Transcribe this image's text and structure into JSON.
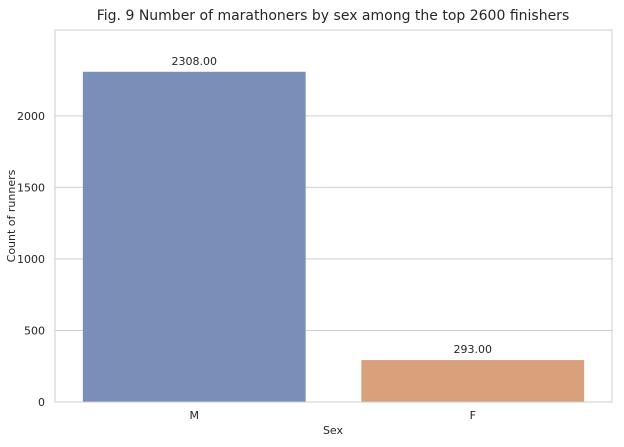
{
  "chart_data": {
    "type": "bar",
    "title": "Fig. 9 Number of marathoners by sex among the top 2600 finishers",
    "xlabel": "Sex",
    "ylabel": "Count of runners",
    "categories": [
      "M",
      "F"
    ],
    "values": [
      2308,
      293
    ],
    "value_labels": [
      "2308.00",
      "293.00"
    ],
    "bar_colors": [
      "#7a8fb8",
      "#d9a07c"
    ],
    "ylim": [
      0,
      2600
    ],
    "yticks": [
      0,
      500,
      1000,
      1500,
      2000
    ],
    "grid": "horizontal",
    "legend": "none"
  },
  "colors": {
    "background": "#ffffff",
    "grid": "#cfcfcf",
    "axes_edge": "#cccccc",
    "text": "#262626"
  }
}
